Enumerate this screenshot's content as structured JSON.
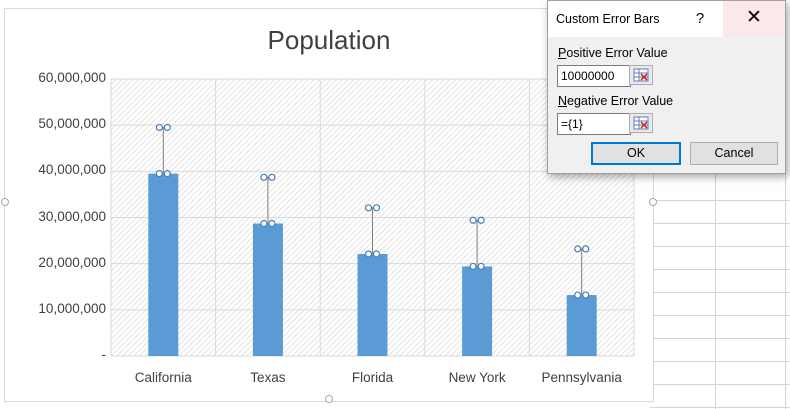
{
  "chart_data": {
    "type": "bar",
    "title": "Population",
    "categories": [
      "California",
      "Texas",
      "Florida",
      "New York",
      "Pennsylvania"
    ],
    "series": [
      {
        "values": [
          39500000,
          28700000,
          22100000,
          19400000,
          13200000
        ]
      }
    ],
    "error_bars": {
      "positive": 10000000,
      "negative": 1
    },
    "yticks": [
      "60,000,000",
      "50,000,000",
      "40,000,000",
      "30,000,000",
      "20,000,000",
      "10,000,000",
      "-"
    ],
    "ylim": [
      0,
      60000000
    ],
    "bar_color": "#5b9bd5",
    "plot_fill": "hatched light gray",
    "grid": true
  },
  "dialog": {
    "title": "Custom Error Bars",
    "help_label": "?",
    "close_label": "✕",
    "positive_label_accel": "P",
    "positive_label_rest": "ositive Error Value",
    "positive_value": "10000000",
    "negative_label_accel": "N",
    "negative_label_rest": "egative Error Value",
    "negative_value": "={1}",
    "ok_label": "OK",
    "cancel_label": "Cancel"
  }
}
